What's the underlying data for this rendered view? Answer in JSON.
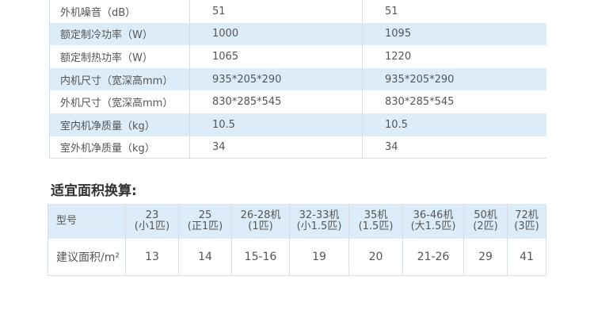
{
  "specs": {
    "rows": [
      [
        "外机噪音（dB）",
        "51",
        "51"
      ],
      [
        "额定制冷功率（W）",
        "1000",
        "1095"
      ],
      [
        "额定制热功率（W）",
        "1065",
        "1220"
      ],
      [
        "内机尺寸（宽深高mm）",
        "935*205*290",
        "935*205*290"
      ],
      [
        "外机尺寸（宽深高mm）",
        "830*285*545",
        "830*285*545"
      ],
      [
        "室内机净质量（kg）",
        "10.5",
        "10.5"
      ],
      [
        "室外机净质量（kg）",
        "34",
        "34"
      ]
    ]
  },
  "area": {
    "title": "适宜面积换算:",
    "header": [
      [
        "型号"
      ],
      [
        "23",
        "(小1匹)"
      ],
      [
        "25",
        "(正1匹)"
      ],
      [
        "26-28机",
        "(1匹)"
      ],
      [
        "32-33机",
        "(小1.5匹)"
      ],
      [
        "35机",
        "(1.5匹)"
      ],
      [
        "36-46机",
        "(大1.5匹)"
      ],
      [
        "50机",
        "(2匹)"
      ],
      [
        "72机",
        "(3匹)"
      ]
    ],
    "row": [
      "建议面积/m²",
      "13",
      "14",
      "15-16",
      "19",
      "20",
      "21-26",
      "29",
      "41"
    ]
  }
}
